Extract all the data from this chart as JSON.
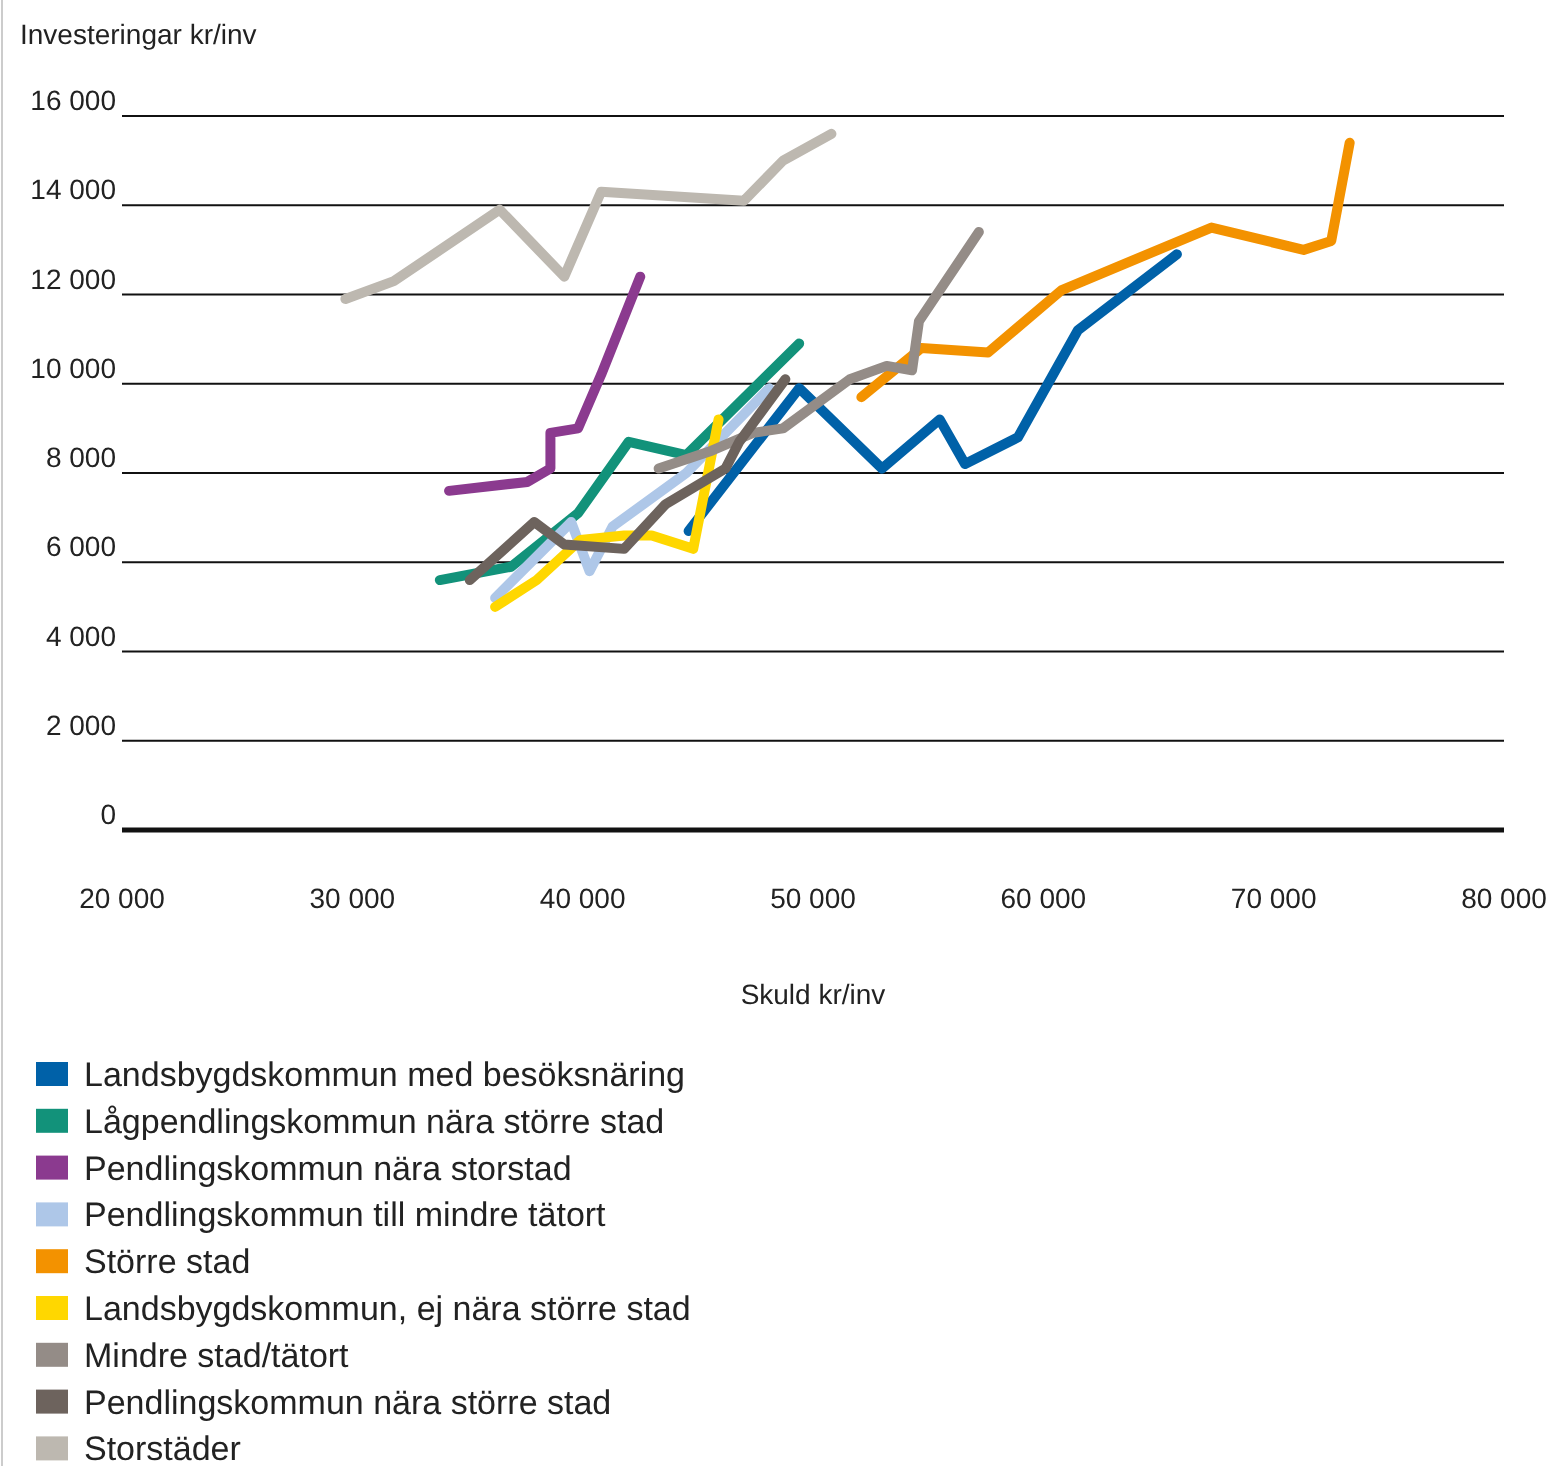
{
  "chart_data": {
    "type": "line",
    "xlabel": "Skuld kr/inv",
    "ylabel": "Investeringar kr/inv",
    "xlim": [
      20000,
      80000
    ],
    "ylim": [
      0,
      16000
    ],
    "xticks": [
      {
        "value": 20000,
        "label": "20 000"
      },
      {
        "value": 30000,
        "label": "30 000"
      },
      {
        "value": 40000,
        "label": "40 000"
      },
      {
        "value": 50000,
        "label": "50 000"
      },
      {
        "value": 60000,
        "label": "60 000"
      },
      {
        "value": 70000,
        "label": "70 000"
      },
      {
        "value": 80000,
        "label": "80 000"
      }
    ],
    "yticks": [
      {
        "value": 0,
        "label": "0"
      },
      {
        "value": 2000,
        "label": "2 000"
      },
      {
        "value": 4000,
        "label": "4 000"
      },
      {
        "value": 6000,
        "label": "6 000"
      },
      {
        "value": 8000,
        "label": "8 000"
      },
      {
        "value": 10000,
        "label": "10 000"
      },
      {
        "value": 12000,
        "label": "12 000"
      },
      {
        "value": 14000,
        "label": "14 000"
      },
      {
        "value": 16000,
        "label": "16 000"
      }
    ],
    "grid": "y",
    "legend": "bottom",
    "marker": "none",
    "line_style": "solid",
    "series": [
      {
        "name": "Landsbygdskommun med besöksnäring",
        "color": "#0061a8",
        "x": [
          44600,
          49400,
          53000,
          55500,
          56600,
          58900,
          61500,
          65800
        ],
        "values": [
          6700,
          9900,
          8100,
          9200,
          8200,
          8800,
          11200,
          12900
        ]
      },
      {
        "name": "Lågpendlingskommun nära större stad",
        "color": "#12927a",
        "x": [
          33800,
          36900,
          39800,
          42000,
          44500,
          49400
        ],
        "values": [
          5600,
          5900,
          7100,
          8700,
          8400,
          10900
        ]
      },
      {
        "name": "Pendlingskommun nära storstad",
        "color": "#8b3a8f",
        "x": [
          34200,
          37600,
          38600,
          38600,
          39800,
          40800,
          42500
        ],
        "values": [
          7600,
          7800,
          8100,
          8900,
          9000,
          10200,
          12400
        ]
      },
      {
        "name": "Pendlingskommun till mindre tätort",
        "color": "#aec7e8",
        "x": [
          36200,
          39500,
          40300,
          41300,
          44500,
          48100
        ],
        "values": [
          5200,
          6900,
          5800,
          6800,
          8000,
          9900
        ]
      },
      {
        "name": "Större stad",
        "color": "#f39200",
        "x": [
          52100,
          54700,
          57600,
          60800,
          67300,
          71300,
          72500,
          73300
        ],
        "values": [
          9700,
          10800,
          10700,
          12100,
          13500,
          13000,
          13200,
          15400
        ]
      },
      {
        "name": "Landsbygdskommun, ej nära större stad",
        "color": "#ffd700",
        "x": [
          36200,
          38000,
          39900,
          41800,
          43000,
          44800,
          45900
        ],
        "values": [
          5000,
          5600,
          6500,
          6600,
          6600,
          6300,
          9200
        ]
      },
      {
        "name": "Mindre stad/tätort",
        "color": "#948c87",
        "x": [
          43300,
          45600,
          47400,
          48700,
          51600,
          53200,
          54300,
          54600,
          57200
        ],
        "values": [
          8100,
          8500,
          8900,
          9000,
          10100,
          10400,
          10300,
          11400,
          13400
        ]
      },
      {
        "name": "Pendlingskommun nära större stad",
        "color": "#6d635d",
        "x": [
          35100,
          37900,
          39200,
          41800,
          43600,
          46200,
          46800,
          48800
        ],
        "values": [
          5600,
          6900,
          6400,
          6300,
          7300,
          8100,
          8700,
          10100
        ]
      },
      {
        "name": "Storstäder",
        "color": "#bdb8b0",
        "x": [
          29700,
          31800,
          36400,
          39200,
          40800,
          47000,
          48700,
          50800
        ],
        "values": [
          11900,
          12300,
          13900,
          12400,
          14300,
          14100,
          15000,
          15600
        ]
      }
    ]
  }
}
